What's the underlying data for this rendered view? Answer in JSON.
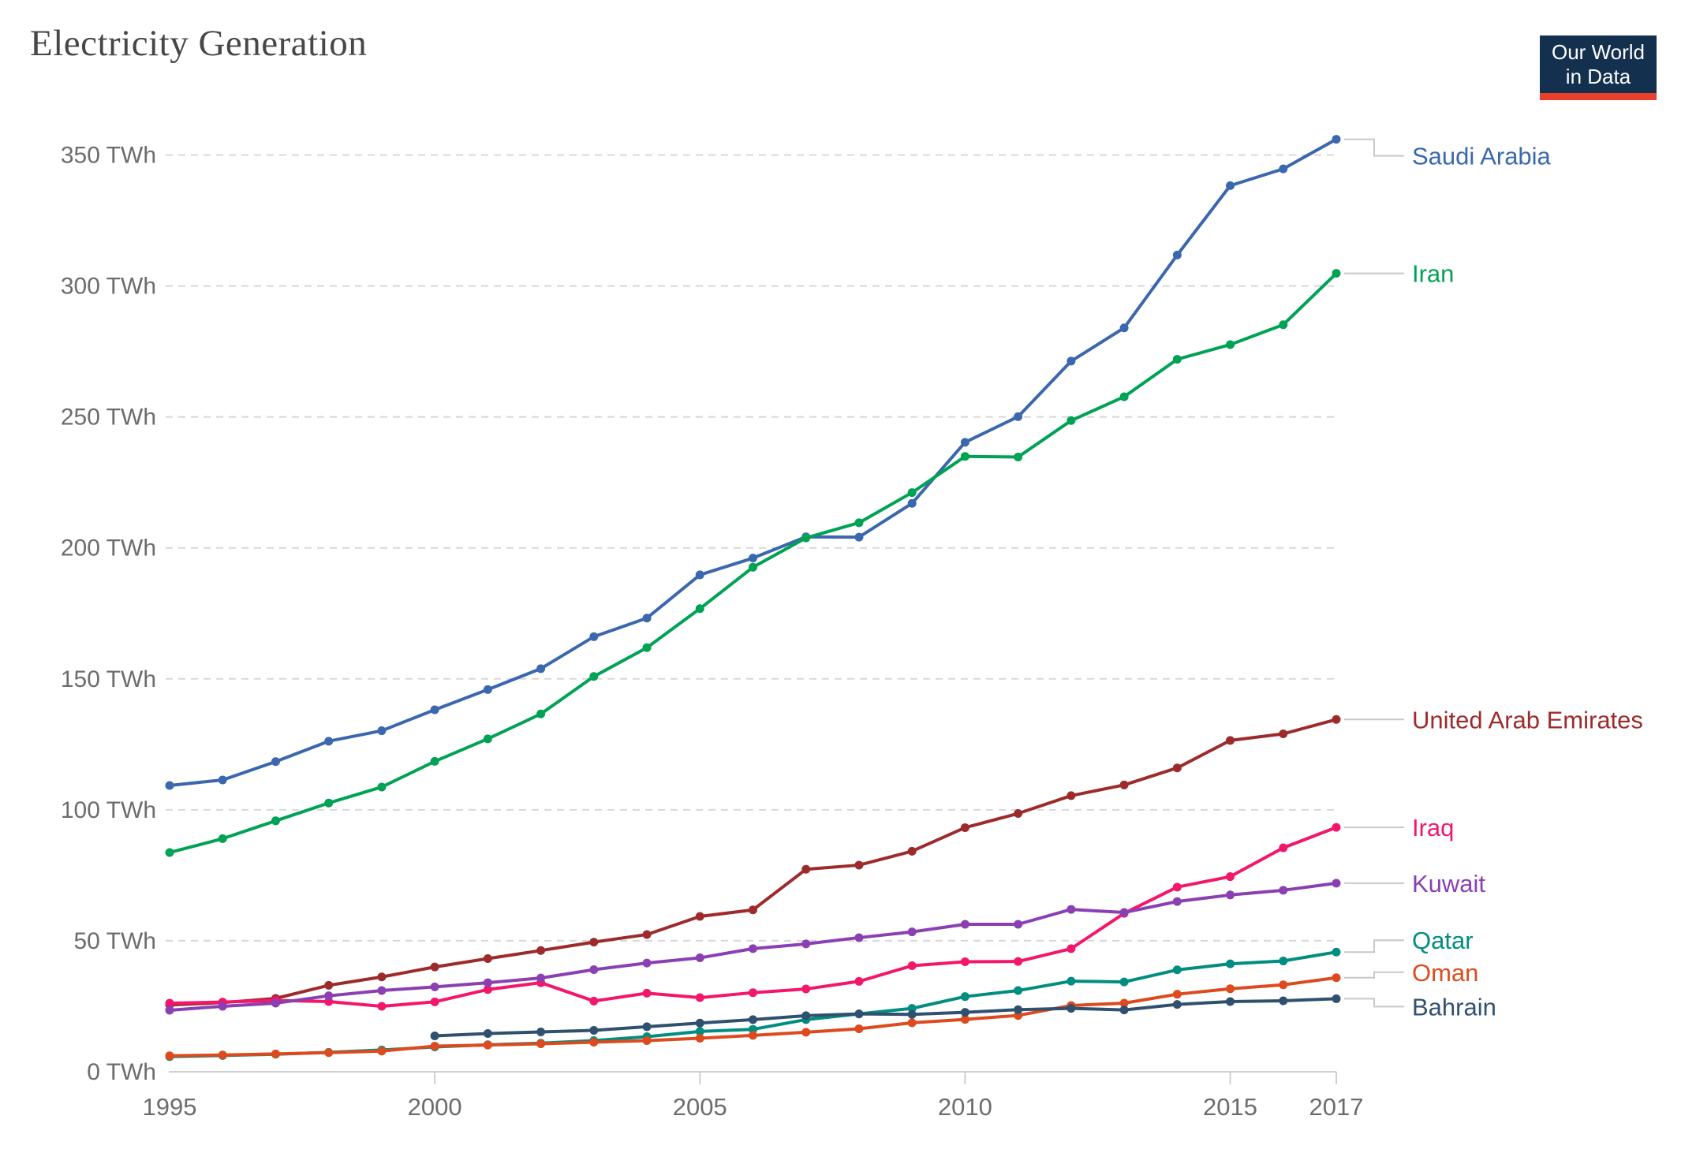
{
  "header": {
    "title": "Electricity Generation"
  },
  "logo": {
    "line1": "Our World",
    "line2": "in Data",
    "bg_color": "#14304F",
    "bar_color": "#E8402A"
  },
  "axes": {
    "ytick_labels": [
      "0 TWh",
      "50 TWh",
      "100 TWh",
      "150 TWh",
      "200 TWh",
      "250 TWh",
      "300 TWh",
      "350 TWh"
    ],
    "xtick_labels": [
      "1995",
      "2000",
      "2005",
      "2010",
      "2015",
      "2017"
    ]
  },
  "chart_data": {
    "type": "line",
    "title": "Electricity Generation",
    "ylabel": "TWh",
    "ylim": [
      0,
      350
    ],
    "ytick_step": 50,
    "grid": "dashed-horizontal",
    "legend_position": "right-of-line-ends",
    "x_years": [
      1995,
      1996,
      1997,
      1998,
      1999,
      2000,
      2001,
      2002,
      2003,
      2004,
      2005,
      2006,
      2007,
      2008,
      2009,
      2010,
      2011,
      2012,
      2013,
      2014,
      2015,
      2016,
      2017
    ],
    "xticks_labeled": [
      1995,
      2000,
      2005,
      2010,
      2015,
      2017
    ],
    "series": [
      {
        "name": "Saudi Arabia",
        "color": "#3A67AD",
        "start_year": 1995,
        "label_dy": 21,
        "values": [
          109.3,
          111.4,
          118.4,
          126.2,
          130.2,
          138.2,
          145.9,
          153.9,
          166.1,
          173.2,
          189.7,
          196.1,
          204.2,
          204.1,
          217.0,
          240.3,
          250.1,
          271.3,
          284.0,
          311.8,
          338.3,
          344.7,
          356.0
        ]
      },
      {
        "name": "Iran",
        "color": "#00A254",
        "start_year": 1995,
        "label_dy": 0,
        "values": [
          83.7,
          89.0,
          95.8,
          102.6,
          108.7,
          118.5,
          127.1,
          136.6,
          150.9,
          161.9,
          176.8,
          192.6,
          203.8,
          209.6,
          221.1,
          234.9,
          234.7,
          248.6,
          257.7,
          272.0,
          277.6,
          285.2,
          304.8
        ]
      },
      {
        "name": "United Arab Emirates",
        "color": "#9E2B2B",
        "start_year": 1995,
        "label_dy": 0,
        "values": [
          25.5,
          26.4,
          28.0,
          33.0,
          36.2,
          40.0,
          43.2,
          46.3,
          49.5,
          52.4,
          59.3,
          61.8,
          77.3,
          78.9,
          84.2,
          93.2,
          98.6,
          105.4,
          109.5,
          116.0,
          126.5,
          129.0,
          134.5
        ]
      },
      {
        "name": "Iraq",
        "color": "#F2176B",
        "start_year": 1995,
        "label_dy": 0,
        "values": [
          26.2,
          26.6,
          27.2,
          26.8,
          25.0,
          26.7,
          31.4,
          34.0,
          27.0,
          30.0,
          28.3,
          30.2,
          31.6,
          34.5,
          40.5,
          42.0,
          42.1,
          47.0,
          60.5,
          70.5,
          74.5,
          85.5,
          93.3
        ]
      },
      {
        "name": "Kuwait",
        "color": "#8A3FB3",
        "start_year": 1995,
        "label_dy": 0,
        "values": [
          23.5,
          25.0,
          26.2,
          29.0,
          31.0,
          32.4,
          34.0,
          35.8,
          39.0,
          41.5,
          43.5,
          47.0,
          48.8,
          51.2,
          53.4,
          56.3,
          56.3,
          62.0,
          60.8,
          65.0,
          67.5,
          69.3,
          72.0
        ]
      },
      {
        "name": "Qatar",
        "color": "#018D80",
        "start_year": 1995,
        "label_dy": -15,
        "values": [
          5.8,
          6.2,
          6.7,
          7.4,
          8.3,
          9.5,
          10.3,
          10.9,
          11.9,
          13.4,
          15.4,
          16.2,
          19.9,
          22.1,
          24.2,
          28.7,
          31.0,
          34.6,
          34.3,
          38.9,
          41.2,
          42.3,
          45.7
        ]
      },
      {
        "name": "Oman",
        "color": "#DD4A1D",
        "start_year": 1995,
        "label_dy": -7,
        "values": [
          6.1,
          6.4,
          6.8,
          7.3,
          7.9,
          9.8,
          10.2,
          10.7,
          11.3,
          11.9,
          12.8,
          13.9,
          15.1,
          16.4,
          18.7,
          20.0,
          21.5,
          25.3,
          26.2,
          29.6,
          31.7,
          33.2,
          35.9
        ]
      },
      {
        "name": "Bahrain",
        "color": "#30506F",
        "start_year": 2000,
        "label_dy": 10,
        "values": [
          13.7,
          14.6,
          15.2,
          15.8,
          17.2,
          18.6,
          19.9,
          21.4,
          22.1,
          21.9,
          22.7,
          23.7,
          24.2,
          23.6,
          25.7,
          26.8,
          27.1,
          27.9
        ]
      }
    ]
  }
}
